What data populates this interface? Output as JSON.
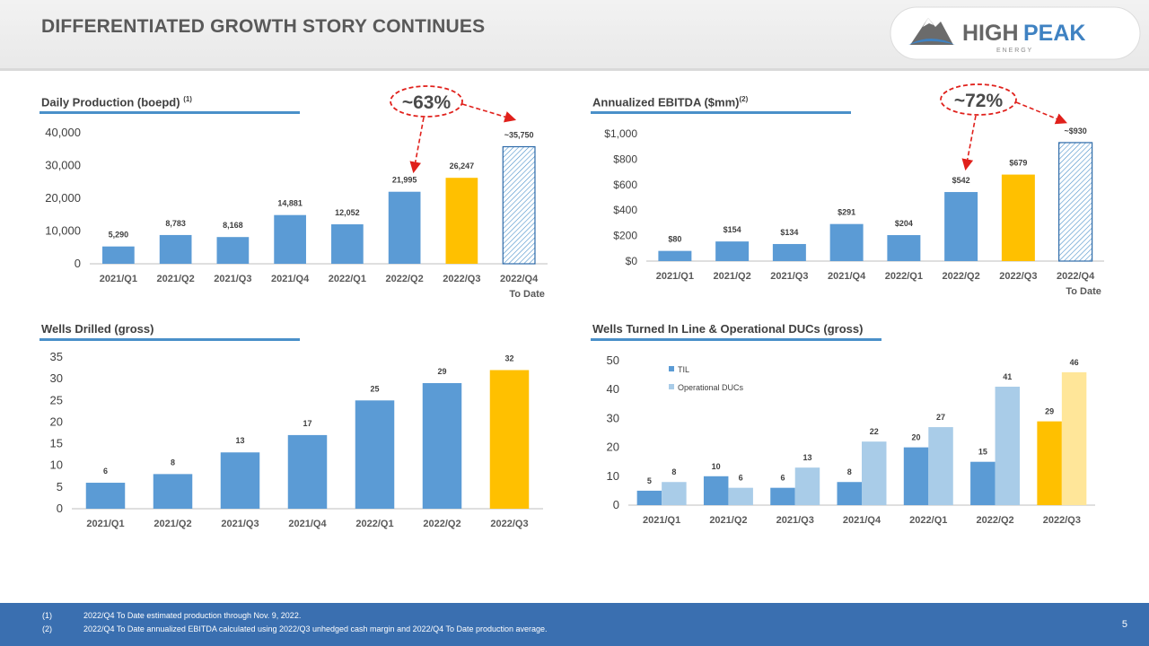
{
  "header": {
    "title": "DIFFERENTIATED GROWTH STORY CONTINUES"
  },
  "logo": {
    "name_part1": "HIGH",
    "name_part2": "PEAK",
    "tagline": "E N E R G Y"
  },
  "colors": {
    "blue": "#5b9bd5",
    "yellow": "#ffc000",
    "light_blue": "#a9cce8",
    "light_yellow": "#ffe699",
    "callout": "#e0201b",
    "footer": "#3a6fb0"
  },
  "callouts": {
    "production_growth": "~63%",
    "ebitda_growth": "~72%"
  },
  "chart_data": [
    {
      "id": "production",
      "type": "bar",
      "title": "Daily Production (boepd)",
      "title_note": "(1)",
      "categories": [
        "2021/Q1",
        "2021/Q2",
        "2021/Q3",
        "2021/Q4",
        "2022/Q1",
        "2022/Q2",
        "2022/Q3",
        "2022/Q4"
      ],
      "category_sublabels": [
        "",
        "",
        "",
        "",
        "",
        "",
        "",
        "To Date"
      ],
      "values": [
        5290,
        8783,
        8168,
        14881,
        12052,
        21995,
        26247,
        35750
      ],
      "value_labels": [
        "5,290",
        "8,783",
        "8,168",
        "14,881",
        "12,052",
        "21,995",
        "26,247",
        "~35,750"
      ],
      "bar_styles": [
        "solid",
        "solid",
        "solid",
        "solid",
        "solid",
        "solid",
        "highlight",
        "hatched"
      ],
      "yticks": [
        "0",
        "10,000",
        "20,000",
        "30,000",
        "40,000"
      ],
      "ylim": [
        0,
        40000
      ]
    },
    {
      "id": "ebitda",
      "type": "bar",
      "title": "Annualized EBITDA ($mm)",
      "title_note": "(2)",
      "categories": [
        "2021/Q1",
        "2021/Q2",
        "2021/Q3",
        "2021/Q4",
        "2022/Q1",
        "2022/Q2",
        "2022/Q3",
        "2022/Q4"
      ],
      "category_sublabels": [
        "",
        "",
        "",
        "",
        "",
        "",
        "",
        "To Date"
      ],
      "values": [
        80,
        154,
        134,
        291,
        204,
        542,
        679,
        930
      ],
      "value_labels": [
        "$80",
        "$154",
        "$134",
        "$291",
        "$204",
        "$542",
        "$679",
        "~$930"
      ],
      "bar_styles": [
        "solid",
        "solid",
        "solid",
        "solid",
        "solid",
        "solid",
        "highlight",
        "hatched"
      ],
      "yticks": [
        "$0",
        "$200",
        "$400",
        "$600",
        "$800",
        "$1,000"
      ],
      "ylim": [
        0,
        1000
      ]
    },
    {
      "id": "wells_drilled",
      "type": "bar",
      "title": "Wells Drilled (gross)",
      "title_note": "",
      "categories": [
        "2021/Q1",
        "2021/Q2",
        "2021/Q3",
        "2021/Q4",
        "2022/Q1",
        "2022/Q2",
        "2022/Q3"
      ],
      "values": [
        6,
        8,
        13,
        17,
        25,
        29,
        32
      ],
      "value_labels": [
        "6",
        "8",
        "13",
        "17",
        "25",
        "29",
        "32"
      ],
      "bar_styles": [
        "solid",
        "solid",
        "solid",
        "solid",
        "solid",
        "solid",
        "highlight"
      ],
      "yticks": [
        "0",
        "5",
        "10",
        "15",
        "20",
        "25",
        "30",
        "35"
      ],
      "ylim": [
        0,
        35
      ]
    },
    {
      "id": "til_ducs",
      "type": "bar",
      "title": "Wells Turned In Line & Operational DUCs (gross)",
      "title_note": "",
      "categories": [
        "2021/Q1",
        "2021/Q2",
        "2021/Q3",
        "2021/Q4",
        "2022/Q1",
        "2022/Q2",
        "2022/Q3"
      ],
      "series": [
        {
          "name": "TIL",
          "values": [
            5,
            10,
            6,
            8,
            20,
            15,
            29
          ],
          "value_labels": [
            "5",
            "10",
            "6",
            "8",
            "20",
            "15",
            "29"
          ]
        },
        {
          "name": "Operational DUCs",
          "values": [
            8,
            6,
            13,
            22,
            27,
            41,
            46
          ],
          "value_labels": [
            "8",
            "6",
            "13",
            "22",
            "27",
            "41",
            "46"
          ]
        }
      ],
      "yticks": [
        "0",
        "10",
        "20",
        "30",
        "40",
        "50"
      ],
      "ylim": [
        0,
        50
      ],
      "legend": "top-left"
    }
  ],
  "footnotes": [
    {
      "num": "(1)",
      "text": "2022/Q4 To Date estimated production through Nov. 9, 2022."
    },
    {
      "num": "(2)",
      "text": "2022/Q4 To Date annualized EBITDA calculated using 2022/Q3 unhedged cash margin and 2022/Q4 To Date production average."
    }
  ],
  "page_number": "5"
}
